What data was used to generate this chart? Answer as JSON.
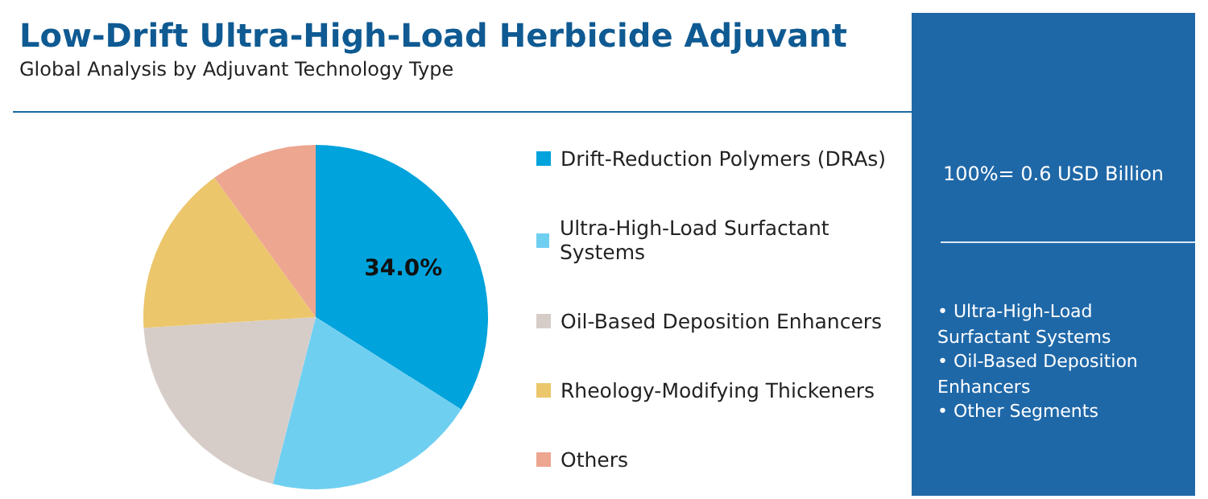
{
  "chart_data": {
    "type": "pie",
    "title": "Low-Drift Ultra-High-Load Herbicide Adjuvant",
    "subtitle": "Global Analysis by Adjuvant Technology Type",
    "categories": [
      "Drift-Reduction Polymers (DRAs)",
      "Ultra-High-Load Surfactant Systems",
      "Oil-Based Deposition Enhancers",
      "Rheology-Modifying Thickeners",
      "Others"
    ],
    "values": [
      34,
      20,
      20,
      16,
      10
    ],
    "value_labels": [
      "34.0%",
      null,
      null,
      null,
      null
    ],
    "colors": [
      "#00a3dc",
      "#6fcff1",
      "#d6cdc9",
      "#ebc66b",
      "#eda68f"
    ],
    "legend": "right",
    "annotations": [
      "100%= 0.6 USD Billion",
      "• Ultra-High-Load Surfactant Systems",
      "• Oil-Based Deposition Enhancers",
      "• Other Segments"
    ]
  }
}
